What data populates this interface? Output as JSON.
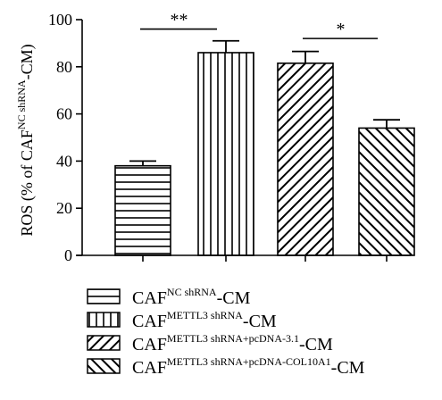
{
  "chart_data": {
    "type": "bar",
    "ylabel": {
      "pre": "ROS (% of CAF",
      "sup": "NC shRNA",
      "post": "-CM)"
    },
    "ylim": [
      0,
      100
    ],
    "yticks": [
      0,
      20,
      40,
      60,
      80,
      100
    ],
    "series": [
      {
        "base": "CAF",
        "sup": "NC shRNA",
        "suffix": "-CM",
        "value": 38,
        "error": 2,
        "pattern": "horizontal"
      },
      {
        "base": "CAF",
        "sup": "METTL3 shRNA",
        "suffix": "-CM",
        "value": 86,
        "error": 5,
        "pattern": "vertical"
      },
      {
        "base": "CAF",
        "sup": "METTL3 shRNA+pcDNA-3.1",
        "suffix": "-CM",
        "value": 81.5,
        "error": 5,
        "pattern": "diag-forward"
      },
      {
        "base": "CAF",
        "sup": "METTL3 shRNA+pcDNA-COL10A1",
        "suffix": "-CM",
        "value": 54,
        "error": 3.5,
        "pattern": "diag-back"
      }
    ],
    "significance": [
      {
        "from": 0,
        "to": 1,
        "label": "**",
        "y": 96
      },
      {
        "from": 2,
        "to": 3,
        "label": "*",
        "y": 92
      }
    ]
  }
}
